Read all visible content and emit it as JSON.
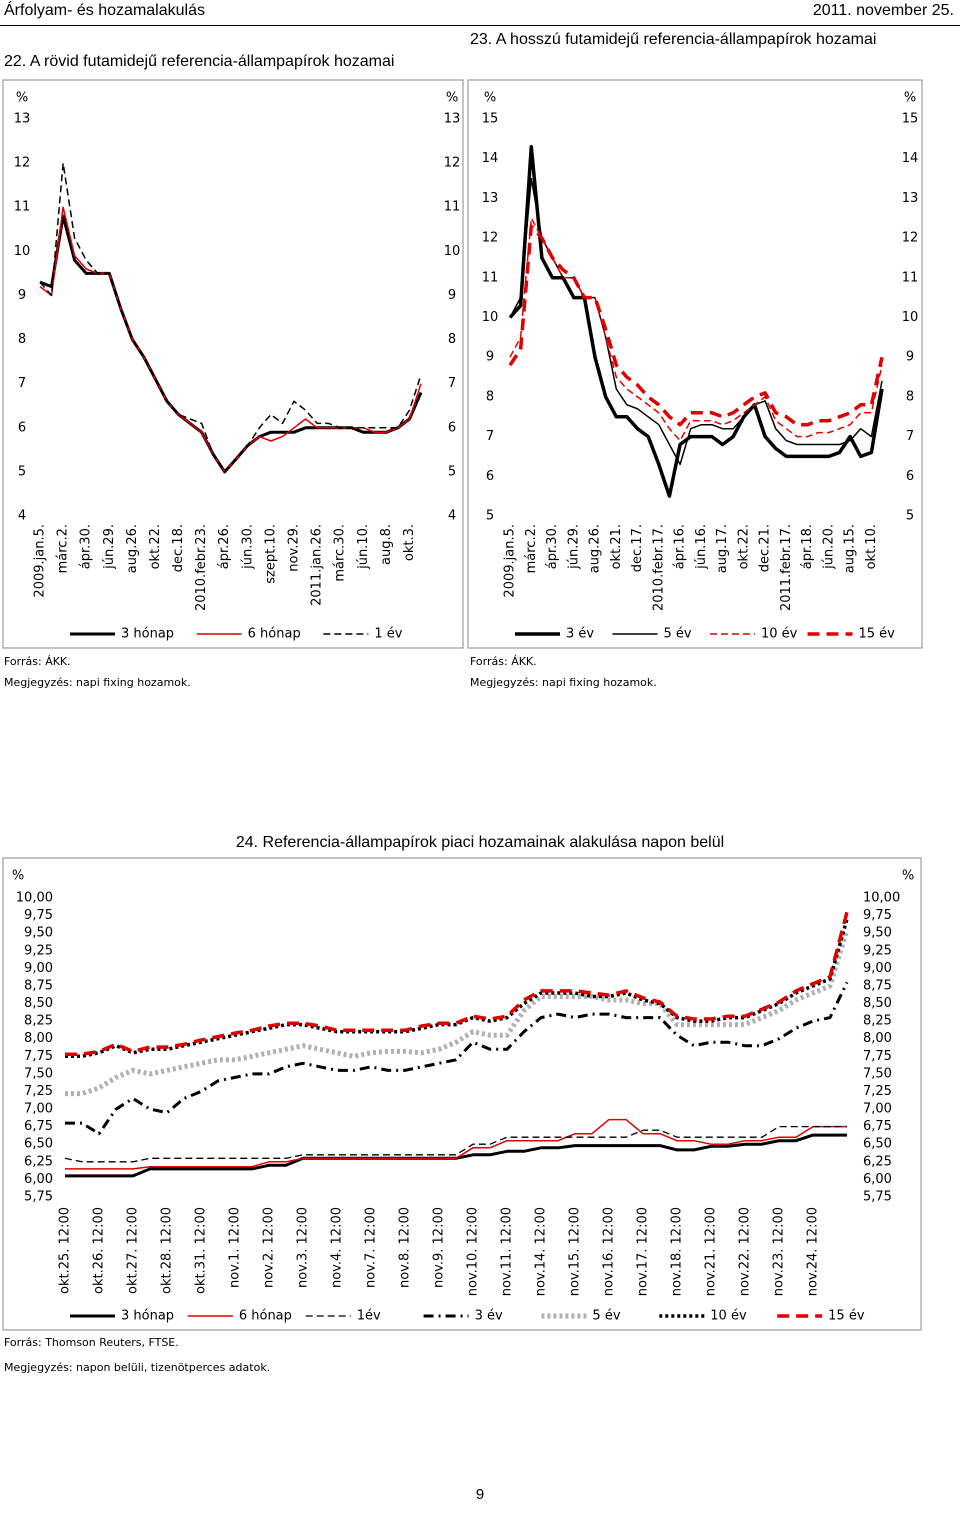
{
  "header": {
    "title": "Árfolyam- és hozamalakulás",
    "date": "2011. november 25."
  },
  "page_number": "9",
  "chart_data": [
    {
      "type": "line",
      "title": "22. A rövid futamidejű referencia-állampapírok hozamai",
      "y_label": "%",
      "source": "Forrás: ÁKK.",
      "note": "Megjegyzés: napi fixing hozamok.",
      "categories": [
        "2009.jan.5.",
        null,
        "márc.2.",
        null,
        "ápr.30.",
        null,
        "jún.29.",
        null,
        "aug.26.",
        null,
        "okt.22.",
        null,
        "dec.18.",
        null,
        "2010.febr.23.",
        null,
        "ápr.26.",
        null,
        "jún.30.",
        null,
        "szept.10.",
        null,
        "nov.29.",
        null,
        "2011.jan.26.",
        null,
        "márc.30.",
        null,
        "jún.10.",
        null,
        "aug.8.",
        null,
        "okt.3.",
        null
      ],
      "ylim": [
        4,
        13
      ],
      "yticks": [
        4,
        5,
        6,
        7,
        8,
        9,
        10,
        11,
        12,
        13
      ],
      "series": [
        {
          "name": "3 hónap",
          "color": "#000000",
          "width": 3,
          "style": "solid",
          "values": [
            9.3,
            9.2,
            10.8,
            9.8,
            9.5,
            9.5,
            9.5,
            8.7,
            8.0,
            7.6,
            7.1,
            6.6,
            6.3,
            6.1,
            5.9,
            5.4,
            5.0,
            5.3,
            5.6,
            5.8,
            5.9,
            5.9,
            5.9,
            6.0,
            6.0,
            6.0,
            6.0,
            6.0,
            5.9,
            5.9,
            5.9,
            6.0,
            6.2,
            6.8
          ]
        },
        {
          "name": "6 hónap",
          "color": "#e00000",
          "width": 1.5,
          "style": "solid",
          "values": [
            9.2,
            9.0,
            11.0,
            9.9,
            9.6,
            9.5,
            9.5,
            8.7,
            8.0,
            7.6,
            7.1,
            6.6,
            6.3,
            6.1,
            5.9,
            5.4,
            5.0,
            5.3,
            5.6,
            5.8,
            5.7,
            5.8,
            6.0,
            6.2,
            6.0,
            6.0,
            6.0,
            6.0,
            6.0,
            5.9,
            5.9,
            6.0,
            6.2,
            7.0
          ]
        },
        {
          "name": "1 év",
          "color": "#000000",
          "width": 1.5,
          "style": "dashed",
          "values": [
            9.3,
            9.0,
            12.0,
            10.3,
            9.8,
            9.5,
            9.5,
            8.7,
            8.0,
            7.6,
            7.1,
            6.6,
            6.3,
            6.2,
            6.1,
            5.4,
            5.0,
            5.3,
            5.6,
            6.0,
            6.3,
            6.1,
            6.6,
            6.4,
            6.1,
            6.1,
            6.0,
            6.0,
            6.0,
            6.0,
            6.0,
            6.0,
            6.4,
            7.2
          ]
        }
      ]
    },
    {
      "type": "line",
      "title": "23. A hosszú futamidejű referencia-állampapírok hozamai",
      "y_label": "%",
      "source": "Forrás: ÁKK.",
      "note": "Megjegyzés: napi fixing hozamok.",
      "categories": [
        "2009.jan.5.",
        null,
        "márc.2.",
        null,
        "ápr.30.",
        null,
        "jún.29.",
        null,
        "aug.26.",
        null,
        "okt.21.",
        null,
        "dec.17.",
        null,
        "2010.febr.17.",
        null,
        "ápr.16.",
        null,
        "jún.16.",
        null,
        "aug.17.",
        null,
        "okt.22.",
        null,
        "dec.21.",
        null,
        "2011.febr.17.",
        null,
        "ápr.18.",
        null,
        "jún.20.",
        null,
        "aug.15.",
        null,
        "okt.10.",
        null
      ],
      "ylim": [
        5,
        15
      ],
      "yticks": [
        5,
        6,
        7,
        8,
        9,
        10,
        11,
        12,
        13,
        14,
        15
      ],
      "series": [
        {
          "name": "3 év",
          "color": "#000000",
          "width": 3.5,
          "style": "solid",
          "values": [
            10,
            10.3,
            14.3,
            11.5,
            11,
            11,
            10.5,
            10.5,
            9,
            8,
            7.5,
            7.5,
            7.2,
            7,
            6.3,
            5.5,
            6.8,
            7,
            7,
            7,
            6.8,
            7,
            7.5,
            7.8,
            7,
            6.7,
            6.5,
            6.5,
            6.5,
            6.5,
            6.5,
            6.6,
            7,
            6.5,
            6.6,
            8.2
          ]
        },
        {
          "name": "5 év",
          "color": "#000000",
          "width": 1.5,
          "style": "solid",
          "values": [
            10,
            10.5,
            13.5,
            12,
            11.5,
            11,
            11,
            10.5,
            10.5,
            9.5,
            8.2,
            7.8,
            7.7,
            7.5,
            7.3,
            6.8,
            6.3,
            7.2,
            7.3,
            7.3,
            7.2,
            7.2,
            7.5,
            7.8,
            7.9,
            7.2,
            6.9,
            6.8,
            6.8,
            6.8,
            6.8,
            6.8,
            6.9,
            7.2,
            7.0,
            8.4
          ]
        },
        {
          "name": "10 év",
          "color": "#e00000",
          "width": 1.5,
          "style": "dashed",
          "values": [
            9.0,
            9.5,
            12.5,
            12.0,
            11.5,
            11,
            11,
            10.5,
            10.5,
            9.5,
            8.5,
            8.2,
            8.0,
            7.8,
            7.6,
            7.2,
            6.9,
            7.4,
            7.4,
            7.4,
            7.3,
            7.4,
            7.6,
            7.8,
            8.0,
            7.4,
            7.2,
            7.0,
            7.0,
            7.1,
            7.1,
            7.2,
            7.3,
            7.6,
            7.6,
            8.8
          ]
        },
        {
          "name": "15 év",
          "color": "#e00000",
          "width": 3.5,
          "style": "longdash",
          "values": [
            8.8,
            9.2,
            12.3,
            12.0,
            11.5,
            11.2,
            11,
            10.5,
            10.5,
            9.7,
            8.8,
            8.5,
            8.3,
            8.0,
            7.8,
            7.5,
            7.3,
            7.6,
            7.6,
            7.6,
            7.5,
            7.6,
            7.8,
            8.0,
            8.1,
            7.6,
            7.5,
            7.3,
            7.3,
            7.4,
            7.4,
            7.5,
            7.6,
            7.8,
            7.8,
            9.0
          ]
        }
      ]
    },
    {
      "type": "line",
      "title": "24. Referencia-állampapírok piaci hozamainak alakulása napon belül",
      "y_label": "%",
      "source": "Forrás: Thomson Reuters, FTSE.",
      "note": "Megjegyzés: napon belüli, tizenötperces adatok.",
      "categories": [
        "okt.25. 12:00",
        null,
        "okt.26. 12:00",
        null,
        "okt.27. 12:00",
        null,
        "okt.28. 12:00",
        null,
        "okt.31. 12:00",
        null,
        "nov.1. 12:00",
        null,
        "nov.2. 12:00",
        null,
        "nov.3. 12:00",
        null,
        "nov.4. 12:00",
        null,
        "nov.7. 12:00",
        null,
        "nov.8. 12:00",
        null,
        "nov.9. 12:00",
        null,
        "nov.10. 12:00",
        null,
        "nov.11. 12:00",
        null,
        "nov.14. 12:00",
        null,
        "nov.15. 12:00",
        null,
        "nov.16. 12:00",
        null,
        "nov.17. 12:00",
        null,
        "nov.18. 12:00",
        null,
        "nov.21. 12:00",
        null,
        "nov.22. 12:00",
        null,
        "nov.23. 12:00",
        null,
        "nov.24. 12:00",
        null,
        null
      ],
      "ylim": [
        5.75,
        10
      ],
      "yticks": [
        {
          "value": 5.75,
          "label": "5,75"
        },
        {
          "value": 6,
          "label": "6,00"
        },
        {
          "value": 6.25,
          "label": "6,25"
        },
        {
          "value": 6.5,
          "label": "6,50"
        },
        {
          "value": 6.75,
          "label": "6,75"
        },
        {
          "value": 7,
          "label": "7,00"
        },
        {
          "value": 7.25,
          "label": "7,25"
        },
        {
          "value": 7.5,
          "label": "7,50"
        },
        {
          "value": 7.75,
          "label": "7,75"
        },
        {
          "value": 8,
          "label": "8,00"
        },
        {
          "value": 8.25,
          "label": "8,25"
        },
        {
          "value": 8.5,
          "label": "8,50"
        },
        {
          "value": 8.75,
          "label": "8,75"
        },
        {
          "value": 9,
          "label": "9,00"
        },
        {
          "value": 9.25,
          "label": "9,25"
        },
        {
          "value": 9.5,
          "label": "9,50"
        },
        {
          "value": 9.75,
          "label": "9,75"
        },
        {
          "value": 10,
          "label": "10,00"
        }
      ],
      "series": [
        {
          "name": "3 hónap",
          "color": "#000000",
          "width": 3,
          "style": "solid",
          "values": [
            6.05,
            6.05,
            6.05,
            6.05,
            6.05,
            6.15,
            6.15,
            6.15,
            6.15,
            6.15,
            6.15,
            6.15,
            6.2,
            6.2,
            6.3,
            6.3,
            6.3,
            6.3,
            6.3,
            6.3,
            6.3,
            6.3,
            6.3,
            6.3,
            6.35,
            6.35,
            6.4,
            6.4,
            6.45,
            6.45,
            6.48,
            6.48,
            6.48,
            6.48,
            6.48,
            6.48,
            6.42,
            6.42,
            6.47,
            6.47,
            6.5,
            6.5,
            6.55,
            6.55,
            6.63,
            6.63,
            6.63
          ]
        },
        {
          "name": "6 hónap",
          "color": "#e00000",
          "width": 1.5,
          "style": "solid",
          "values": [
            6.15,
            6.15,
            6.15,
            6.15,
            6.15,
            6.18,
            6.18,
            6.18,
            6.18,
            6.18,
            6.18,
            6.18,
            6.25,
            6.25,
            6.3,
            6.3,
            6.3,
            6.3,
            6.3,
            6.3,
            6.3,
            6.3,
            6.3,
            6.3,
            6.45,
            6.45,
            6.55,
            6.55,
            6.55,
            6.55,
            6.65,
            6.65,
            6.85,
            6.85,
            6.65,
            6.65,
            6.55,
            6.55,
            6.5,
            6.5,
            6.55,
            6.55,
            6.6,
            6.6,
            6.75,
            6.75,
            6.75
          ]
        },
        {
          "name": "1év",
          "color": "#000000",
          "width": 1.3,
          "style": "dashed",
          "values": [
            6.3,
            6.25,
            6.25,
            6.25,
            6.25,
            6.3,
            6.3,
            6.3,
            6.3,
            6.3,
            6.3,
            6.3,
            6.3,
            6.3,
            6.35,
            6.35,
            6.35,
            6.35,
            6.35,
            6.35,
            6.35,
            6.35,
            6.35,
            6.35,
            6.5,
            6.5,
            6.6,
            6.6,
            6.6,
            6.6,
            6.6,
            6.6,
            6.6,
            6.6,
            6.7,
            6.7,
            6.6,
            6.6,
            6.6,
            6.6,
            6.6,
            6.6,
            6.75,
            6.75,
            6.75,
            6.75,
            6.75
          ]
        },
        {
          "name": "3 év",
          "color": "#000000",
          "width": 3,
          "style": "dash-dot",
          "values": [
            6.8,
            6.8,
            6.65,
            7.0,
            7.15,
            7.0,
            6.95,
            7.15,
            7.25,
            7.4,
            7.45,
            7.5,
            7.5,
            7.6,
            7.65,
            7.6,
            7.55,
            7.55,
            7.6,
            7.55,
            7.55,
            7.6,
            7.65,
            7.7,
            7.95,
            7.85,
            7.85,
            8.1,
            8.3,
            8.35,
            8.3,
            8.35,
            8.35,
            8.3,
            8.3,
            8.3,
            8.05,
            7.9,
            7.95,
            7.95,
            7.9,
            7.9,
            8.0,
            8.15,
            8.25,
            8.3,
            8.8
          ]
        },
        {
          "name": "5 év",
          "color": "#b0b0b0",
          "width": 5,
          "style": "dotted",
          "values": [
            7.22,
            7.22,
            7.3,
            7.45,
            7.55,
            7.5,
            7.55,
            7.6,
            7.65,
            7.7,
            7.7,
            7.75,
            7.8,
            7.85,
            7.9,
            7.85,
            7.8,
            7.75,
            7.8,
            7.82,
            7.82,
            7.8,
            7.85,
            7.95,
            8.1,
            8.05,
            8.05,
            8.4,
            8.6,
            8.6,
            8.6,
            8.6,
            8.55,
            8.55,
            8.5,
            8.5,
            8.2,
            8.2,
            8.2,
            8.2,
            8.2,
            8.3,
            8.4,
            8.55,
            8.65,
            8.75,
            9.55
          ]
        },
        {
          "name": "10 év",
          "color": "#000000",
          "width": 3.5,
          "style": "dotted",
          "values": [
            7.75,
            7.75,
            7.8,
            7.9,
            7.8,
            7.85,
            7.85,
            7.9,
            7.95,
            8.0,
            8.05,
            8.1,
            8.15,
            8.2,
            8.2,
            8.15,
            8.1,
            8.1,
            8.1,
            8.1,
            8.1,
            8.15,
            8.2,
            8.2,
            8.3,
            8.25,
            8.3,
            8.5,
            8.65,
            8.65,
            8.65,
            8.6,
            8.6,
            8.65,
            8.55,
            8.5,
            8.3,
            8.25,
            8.25,
            8.3,
            8.3,
            8.4,
            8.5,
            8.65,
            8.75,
            8.85,
            9.7
          ]
        },
        {
          "name": "15 év",
          "color": "#e00000",
          "width": 3.5,
          "style": "longdash",
          "values": [
            7.78,
            7.78,
            7.82,
            7.92,
            7.82,
            7.88,
            7.88,
            7.92,
            7.98,
            8.03,
            8.08,
            8.12,
            8.18,
            8.22,
            8.22,
            8.18,
            8.12,
            8.12,
            8.12,
            8.12,
            8.12,
            8.18,
            8.22,
            8.22,
            8.32,
            8.28,
            8.32,
            8.55,
            8.68,
            8.68,
            8.68,
            8.65,
            8.62,
            8.68,
            8.58,
            8.52,
            8.32,
            8.28,
            8.28,
            8.32,
            8.32,
            8.42,
            8.52,
            8.68,
            8.78,
            8.88,
            9.8
          ]
        }
      ]
    }
  ]
}
